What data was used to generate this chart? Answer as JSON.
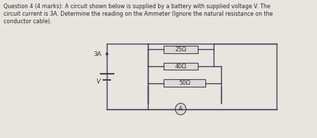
{
  "bg_color": "#e8e4de",
  "text_color": "#2a2a35",
  "title_line1": "Question 4 (4 marks): A circuit shown below is supplied by a battery with supplied voltage V. The",
  "title_line2": "circuit current is 3A. Determine the reading on the Ammeter (Ignore the natural resistance on the",
  "title_line3": "conductor cable).",
  "resistors": [
    "25Ω",
    "40Ω",
    "50Ω"
  ],
  "current_label": "3A",
  "battery_label": "V",
  "ammeter_label": "A",
  "wire_color": "#3a3a55",
  "resistor_box_color": "#3a3a55",
  "resistor_fill": "#dedad4",
  "font_size_text": 5.8,
  "font_size_labels": 6.5,
  "font_size_res": 6.0
}
